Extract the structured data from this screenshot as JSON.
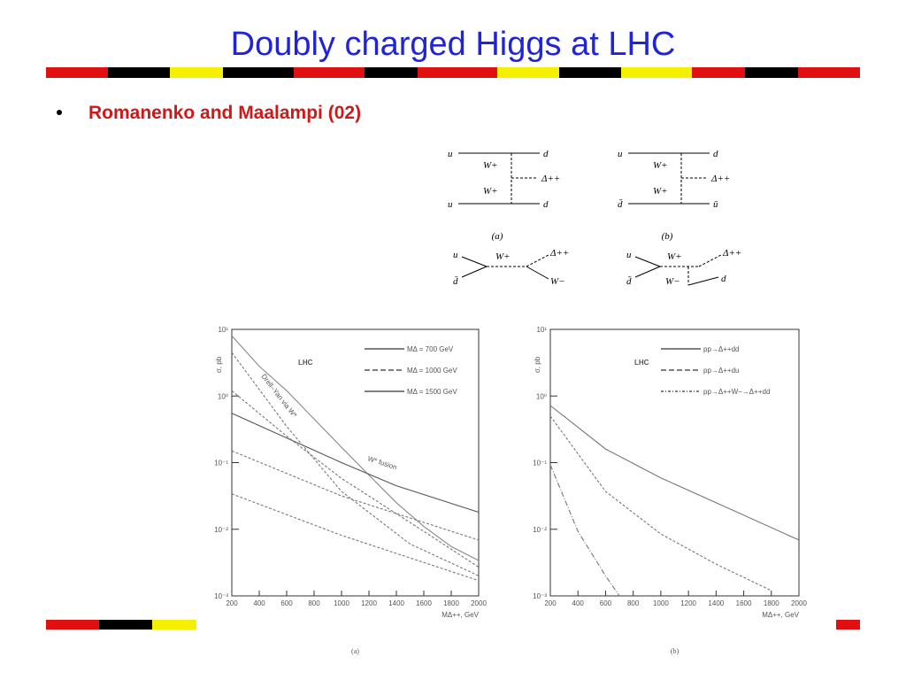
{
  "title": "Doubly charged Higgs at LHC",
  "bullet": "Romanenko and Maalampi (02)",
  "diagrams": [
    {
      "caption": "(a)",
      "labels": [
        "u",
        "d",
        "W+",
        "W+",
        "Δ++",
        "u",
        "d"
      ]
    },
    {
      "caption": "(b)",
      "labels": [
        "u",
        "d",
        "W+",
        "W+",
        "Δ++",
        "d̄",
        "ū"
      ]
    },
    {
      "labels": [
        "u",
        "d̄",
        "W+",
        "Δ++",
        "W−"
      ]
    },
    {
      "labels": [
        "u",
        "d̄",
        "W+",
        "W−",
        "Δ++",
        "d"
      ]
    }
  ],
  "chart_data": [
    {
      "type": "line",
      "log_y": true,
      "caption": "(a)",
      "text": "LHC",
      "xlabel": "MΔ++, GeV",
      "ylabel": "σ, pb",
      "xlim": [
        200,
        2000
      ],
      "xticks": [
        200,
        400,
        600,
        800,
        1000,
        1200,
        1400,
        1600,
        1800,
        2000
      ],
      "ylim": [
        0.001,
        10
      ],
      "yticks": [
        {
          "value": 10,
          "label": "10¹"
        },
        {
          "value": 1,
          "label": "10⁰"
        },
        {
          "value": 0.1,
          "label": "10⁻¹"
        },
        {
          "value": 0.01,
          "label": "10⁻²"
        },
        {
          "value": 0.001,
          "label": "10⁻³"
        }
      ],
      "legend": [
        "MΔ = 700 GeV",
        "MΔ = 1000 GeV",
        "MΔ = 1500 GeV"
      ],
      "annotations": [
        "Drell–Yan via W*",
        "W* fusion"
      ],
      "series": [
        {
          "color": "#888888",
          "x": [
            200,
            400,
            600,
            800,
            1000,
            1200,
            1400,
            1600,
            1800,
            2000
          ],
          "values": [
            8,
            2.8,
            1.2,
            0.45,
            0.17,
            0.065,
            0.025,
            0.011,
            0.0055,
            0.0034
          ]
        },
        {
          "color": "#555555",
          "x": [
            200,
            1000,
            1400,
            2000
          ],
          "values": [
            0.55,
            0.1,
            0.045,
            0.018
          ]
        },
        {
          "color": "#777777",
          "dash": "3 2",
          "x": [
            200,
            600,
            1000,
            1500,
            2000
          ],
          "values": [
            4.5,
            0.35,
            0.037,
            0.006,
            0.002
          ]
        },
        {
          "color": "#777777",
          "dash": "3 2",
          "x": [
            200,
            600,
            1000,
            1600,
            2000
          ],
          "values": [
            1.2,
            0.25,
            0.058,
            0.0093,
            0.0027
          ]
        },
        {
          "color": "#777777",
          "dash": "3 2",
          "x": [
            200,
            1000,
            2000
          ],
          "values": [
            0.15,
            0.0316,
            0.0069
          ]
        },
        {
          "color": "#777777",
          "dash": "3 2",
          "x": [
            200,
            1000,
            2000
          ],
          "values": [
            0.034,
            0.0081,
            0.0017
          ]
        }
      ]
    },
    {
      "type": "line",
      "log_y": true,
      "caption": "(b)",
      "text": "LHC",
      "xlabel": "MΔ++, GeV",
      "ylabel": "σ, pb",
      "xlim": [
        200,
        2000
      ],
      "xticks": [
        200,
        400,
        600,
        800,
        1000,
        1200,
        1400,
        1600,
        1800,
        2000
      ],
      "ylim": [
        0.001,
        10
      ],
      "yticks": [
        {
          "value": 10,
          "label": "10¹"
        },
        {
          "value": 1,
          "label": "10⁰"
        },
        {
          "value": 0.1,
          "label": "10⁻¹"
        },
        {
          "value": 0.01,
          "label": "10⁻²"
        },
        {
          "value": 0.001,
          "label": "10⁻³"
        }
      ],
      "legend": [
        "pp→Δ++dd",
        "pp→Δ++du",
        "pp→Δ++W−→Δ++dd"
      ],
      "series": [
        {
          "color": "#777777",
          "x": [
            200,
            600,
            1000,
            1400,
            2000
          ],
          "values": [
            0.72,
            0.16,
            0.059,
            0.025,
            0.0069
          ]
        },
        {
          "color": "#777777",
          "dash": "3 2",
          "x": [
            200,
            600,
            1000,
            1400,
            1800
          ],
          "values": [
            0.5,
            0.037,
            0.0085,
            0.003,
            0.0012
          ]
        },
        {
          "color": "#777777",
          "dash": "6 2 1 2",
          "x": [
            200,
            400,
            600,
            700
          ],
          "values": [
            0.093,
            0.0093,
            0.002,
            0.001
          ]
        }
      ]
    }
  ]
}
